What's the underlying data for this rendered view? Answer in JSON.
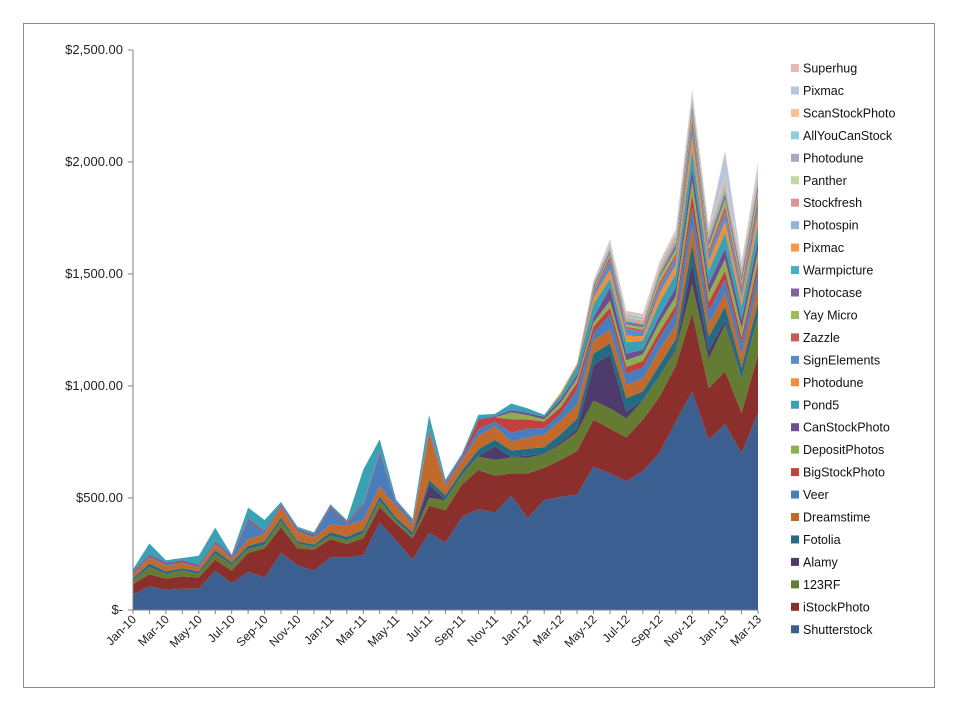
{
  "chart_data": {
    "type": "area",
    "stacked": true,
    "title": "",
    "xlabel": "",
    "ylabel": "",
    "ylim": [
      0,
      2500
    ],
    "yticks": [
      {
        "value": 0,
        "label": "$-"
      },
      {
        "value": 500,
        "label": "$500.00"
      },
      {
        "value": 1000,
        "label": "$1,000.00"
      },
      {
        "value": 1500,
        "label": "$1,500.00"
      },
      {
        "value": 2000,
        "label": "$2,000.00"
      },
      {
        "value": 2500,
        "label": "$2,500.00"
      }
    ],
    "grid": false,
    "legend_position": "right",
    "categories": [
      "Jan-10",
      "Feb-10",
      "Mar-10",
      "Apr-10",
      "May-10",
      "Jun-10",
      "Jul-10",
      "Aug-10",
      "Sep-10",
      "Oct-10",
      "Nov-10",
      "Dec-10",
      "Jan-11",
      "Feb-11",
      "Mar-11",
      "Apr-11",
      "May-11",
      "Jun-11",
      "Jul-11",
      "Aug-11",
      "Sep-11",
      "Oct-11",
      "Nov-11",
      "Dec-11",
      "Jan-12",
      "Feb-12",
      "Mar-12",
      "Apr-12",
      "May-12",
      "Jun-12",
      "Jul-12",
      "Aug-12",
      "Sep-12",
      "Oct-12",
      "Nov-12",
      "Dec-12",
      "Jan-13",
      "Feb-13",
      "Mar-13"
    ],
    "xtick_labels": [
      "Jan-10",
      "Mar-10",
      "May-10",
      "Jul-10",
      "Sep-10",
      "Nov-10",
      "Jan-11",
      "Mar-11",
      "May-11",
      "Jul-11",
      "Sep-11",
      "Nov-11",
      "Jan-12",
      "Mar-12",
      "May-12",
      "Jul-12",
      "Sep-12",
      "Nov-12",
      "Jan-13",
      "Mar-13"
    ],
    "series": [
      {
        "name": "Shutterstock",
        "color": "#3c5f91",
        "values": [
          70,
          105,
          90,
          95,
          95,
          175,
          120,
          170,
          145,
          255,
          200,
          175,
          235,
          235,
          245,
          390,
          310,
          225,
          345,
          300,
          415,
          450,
          435,
          510,
          410,
          490,
          505,
          515,
          640,
          610,
          575,
          620,
          700,
          840,
          975,
          760,
          830,
          700,
          880
        ]
      },
      {
        "name": "iStockPhoto",
        "color": "#8b2f2c",
        "values": [
          45,
          55,
          50,
          55,
          50,
          50,
          55,
          85,
          130,
          115,
          75,
          95,
          80,
          60,
          75,
          70,
          75,
          95,
          120,
          145,
          145,
          175,
          165,
          100,
          200,
          145,
          165,
          195,
          210,
          200,
          195,
          230,
          250,
          250,
          350,
          230,
          235,
          180,
          260
        ]
      },
      {
        "name": "123RF",
        "color": "#647c32",
        "values": [
          15,
          30,
          20,
          25,
          15,
          25,
          25,
          15,
          15,
          25,
          20,
          10,
          15,
          15,
          20,
          25,
          10,
          10,
          35,
          45,
          40,
          60,
          70,
          70,
          70,
          60,
          70,
          85,
          85,
          90,
          85,
          85,
          90,
          70,
          130,
          130,
          210,
          150,
          170
        ]
      },
      {
        "name": "Alamy",
        "color": "#4e3b6c",
        "values": [
          2,
          2,
          2,
          2,
          2,
          2,
          2,
          2,
          2,
          2,
          2,
          2,
          2,
          2,
          2,
          2,
          2,
          2,
          60,
          2,
          2,
          2,
          60,
          2,
          10,
          2,
          10,
          15,
          160,
          240,
          30,
          2,
          2,
          10,
          100,
          40,
          20,
          2,
          2
        ]
      },
      {
        "name": "Fotolia",
        "color": "#226b80",
        "values": [
          10,
          15,
          10,
          10,
          10,
          15,
          10,
          15,
          15,
          15,
          10,
          10,
          15,
          15,
          15,
          20,
          15,
          15,
          20,
          20,
          20,
          30,
          30,
          30,
          30,
          30,
          35,
          45,
          50,
          50,
          60,
          40,
          50,
          40,
          80,
          60,
          60,
          50,
          60
        ]
      },
      {
        "name": "Dreamstime",
        "color": "#c26a2b",
        "values": [
          15,
          25,
          25,
          20,
          15,
          25,
          15,
          30,
          30,
          45,
          40,
          30,
          35,
          50,
          45,
          45,
          50,
          30,
          210,
          40,
          45,
          60,
          60,
          40,
          50,
          55,
          60,
          60,
          60,
          60,
          60,
          55,
          70,
          60,
          80,
          55,
          60,
          55,
          80
        ]
      },
      {
        "name": "Veer",
        "color": "#4a7dbb",
        "values": [
          5,
          5,
          5,
          5,
          5,
          5,
          5,
          80,
          5,
          5,
          5,
          5,
          70,
          5,
          65,
          150,
          10,
          10,
          10,
          10,
          10,
          30,
          20,
          40,
          40,
          30,
          30,
          70,
          30,
          70,
          50,
          50,
          50,
          60,
          80,
          60,
          60,
          50,
          60
        ]
      },
      {
        "name": "BigStockPhoto",
        "color": "#c0413d",
        "values": [
          5,
          5,
          5,
          5,
          5,
          5,
          5,
          5,
          5,
          5,
          5,
          5,
          5,
          5,
          5,
          5,
          5,
          5,
          5,
          5,
          5,
          40,
          20,
          60,
          40,
          30,
          30,
          30,
          30,
          30,
          30,
          30,
          30,
          30,
          60,
          40,
          40,
          30,
          40
        ]
      },
      {
        "name": "DepositPhotos",
        "color": "#8caf50",
        "values": [
          0,
          0,
          0,
          0,
          0,
          0,
          0,
          0,
          0,
          0,
          0,
          0,
          0,
          0,
          0,
          0,
          0,
          0,
          0,
          0,
          0,
          0,
          0,
          30,
          20,
          10,
          20,
          20,
          20,
          30,
          30,
          30,
          40,
          40,
          60,
          40,
          50,
          40,
          50
        ]
      },
      {
        "name": "CanStockPhoto",
        "color": "#6e4d93",
        "values": [
          5,
          5,
          5,
          5,
          5,
          5,
          5,
          5,
          5,
          5,
          5,
          5,
          5,
          5,
          5,
          5,
          5,
          5,
          5,
          5,
          5,
          5,
          5,
          10,
          10,
          10,
          15,
          15,
          20,
          60,
          30,
          20,
          30,
          40,
          60,
          40,
          50,
          40,
          50
        ]
      },
      {
        "name": "Pond5",
        "color": "#3aa1b5",
        "values": [
          10,
          50,
          10,
          10,
          40,
          60,
          5,
          50,
          50,
          10,
          10,
          10,
          10,
          10,
          150,
          50,
          10,
          10,
          60,
          10,
          10,
          20,
          10,
          30,
          20,
          10,
          20,
          40,
          60,
          40,
          50,
          40,
          60,
          60,
          80,
          60,
          70,
          60,
          70
        ]
      },
      {
        "name": "Photodune",
        "color": "#f08f3a",
        "values": [
          0,
          0,
          0,
          0,
          0,
          0,
          0,
          0,
          0,
          0,
          0,
          0,
          0,
          0,
          0,
          0,
          0,
          0,
          0,
          0,
          0,
          0,
          0,
          0,
          0,
          0,
          10,
          10,
          30,
          40,
          30,
          20,
          40,
          40,
          60,
          40,
          50,
          40,
          50
        ]
      },
      {
        "name": "SignElements",
        "color": "#5a8bcb",
        "values": [
          0,
          0,
          0,
          0,
          0,
          0,
          0,
          0,
          0,
          0,
          0,
          0,
          0,
          0,
          0,
          0,
          0,
          0,
          0,
          0,
          0,
          0,
          0,
          0,
          0,
          0,
          0,
          0,
          20,
          40,
          30,
          20,
          30,
          30,
          50,
          30,
          40,
          30,
          40
        ]
      },
      {
        "name": "Zazzle",
        "color": "#c85a57",
        "values": [
          0,
          0,
          0,
          0,
          0,
          0,
          0,
          0,
          0,
          0,
          0,
          0,
          0,
          0,
          0,
          0,
          0,
          0,
          0,
          0,
          0,
          0,
          0,
          0,
          0,
          0,
          0,
          0,
          10,
          20,
          10,
          10,
          20,
          20,
          30,
          20,
          30,
          20,
          30
        ]
      },
      {
        "name": "Yay Micro",
        "color": "#9bbb59",
        "values": [
          0,
          0,
          0,
          0,
          0,
          0,
          0,
          0,
          0,
          0,
          0,
          0,
          0,
          0,
          0,
          0,
          0,
          0,
          0,
          0,
          0,
          0,
          0,
          0,
          0,
          0,
          0,
          0,
          10,
          10,
          10,
          10,
          20,
          20,
          30,
          20,
          30,
          20,
          30
        ]
      },
      {
        "name": "Photocase",
        "color": "#8064a2",
        "values": [
          0,
          0,
          0,
          0,
          0,
          0,
          0,
          0,
          0,
          0,
          0,
          0,
          0,
          0,
          0,
          0,
          0,
          0,
          0,
          0,
          0,
          0,
          0,
          0,
          0,
          0,
          0,
          0,
          10,
          10,
          10,
          10,
          10,
          20,
          20,
          20,
          20,
          20,
          20
        ]
      },
      {
        "name": "Warmpicture",
        "color": "#4bacc6",
        "values": [
          0,
          0,
          0,
          0,
          0,
          0,
          0,
          0,
          0,
          0,
          0,
          0,
          0,
          0,
          0,
          0,
          0,
          0,
          0,
          0,
          0,
          0,
          0,
          0,
          0,
          0,
          0,
          0,
          5,
          10,
          5,
          5,
          10,
          10,
          15,
          10,
          15,
          10,
          15
        ]
      },
      {
        "name": "Pixmac",
        "color": "#f79646",
        "values": [
          0,
          0,
          0,
          0,
          0,
          0,
          0,
          0,
          0,
          0,
          0,
          0,
          0,
          0,
          0,
          0,
          0,
          0,
          0,
          0,
          0,
          0,
          0,
          0,
          0,
          0,
          0,
          0,
          5,
          5,
          5,
          5,
          10,
          10,
          10,
          10,
          10,
          10,
          10
        ]
      },
      {
        "name": "Photospin",
        "color": "#95b3d7",
        "values": [
          0,
          0,
          0,
          0,
          0,
          0,
          0,
          0,
          0,
          0,
          0,
          0,
          0,
          0,
          0,
          0,
          0,
          0,
          0,
          0,
          0,
          0,
          0,
          0,
          0,
          0,
          0,
          0,
          5,
          5,
          5,
          5,
          5,
          10,
          10,
          10,
          10,
          10,
          10
        ]
      },
      {
        "name": "Stockfresh",
        "color": "#d99694",
        "values": [
          0,
          0,
          0,
          0,
          0,
          0,
          0,
          0,
          0,
          0,
          0,
          0,
          0,
          0,
          0,
          0,
          0,
          0,
          0,
          0,
          0,
          0,
          0,
          0,
          0,
          0,
          0,
          0,
          5,
          5,
          5,
          5,
          5,
          10,
          10,
          10,
          10,
          10,
          10
        ]
      },
      {
        "name": "Panther",
        "color": "#c3d69b",
        "values": [
          0,
          0,
          0,
          0,
          0,
          0,
          0,
          0,
          0,
          0,
          0,
          0,
          0,
          0,
          0,
          0,
          0,
          0,
          0,
          0,
          0,
          0,
          0,
          0,
          0,
          0,
          0,
          0,
          5,
          5,
          5,
          5,
          5,
          5,
          10,
          5,
          10,
          5,
          10
        ]
      },
      {
        "name": "Photodune",
        "color": "#b2a2c7",
        "values": [
          0,
          0,
          0,
          0,
          0,
          0,
          0,
          0,
          0,
          0,
          0,
          0,
          0,
          0,
          0,
          0,
          0,
          0,
          0,
          0,
          0,
          0,
          0,
          0,
          0,
          0,
          0,
          0,
          0,
          5,
          5,
          5,
          5,
          5,
          5,
          5,
          10,
          5,
          10
        ]
      },
      {
        "name": "AllYouCanStock",
        "color": "#92cddc",
        "values": [
          0,
          0,
          0,
          0,
          0,
          0,
          0,
          0,
          0,
          0,
          0,
          0,
          0,
          0,
          0,
          0,
          0,
          0,
          0,
          0,
          0,
          0,
          0,
          0,
          0,
          0,
          0,
          0,
          0,
          5,
          5,
          5,
          5,
          5,
          5,
          5,
          10,
          5,
          10
        ]
      },
      {
        "name": "ScanStockPhoto",
        "color": "#fac08f",
        "values": [
          0,
          0,
          0,
          0,
          0,
          0,
          0,
          0,
          0,
          0,
          0,
          0,
          0,
          0,
          0,
          0,
          0,
          0,
          0,
          0,
          0,
          0,
          0,
          0,
          0,
          0,
          0,
          0,
          0,
          5,
          5,
          5,
          5,
          5,
          5,
          5,
          10,
          5,
          10
        ]
      },
      {
        "name": "Pixmac",
        "color": "#b7c4dd",
        "values": [
          0,
          0,
          0,
          0,
          0,
          0,
          0,
          0,
          0,
          0,
          0,
          0,
          0,
          0,
          0,
          0,
          0,
          0,
          0,
          0,
          0,
          0,
          0,
          0,
          0,
          0,
          0,
          0,
          0,
          5,
          5,
          5,
          5,
          5,
          5,
          5,
          100,
          5,
          10
        ]
      },
      {
        "name": "Superhug",
        "color": "#e6b9b8",
        "values": [
          0,
          0,
          0,
          0,
          0,
          0,
          0,
          0,
          0,
          0,
          0,
          0,
          0,
          0,
          0,
          0,
          0,
          0,
          0,
          0,
          0,
          0,
          0,
          0,
          0,
          0,
          0,
          0,
          0,
          5,
          5,
          5,
          5,
          5,
          5,
          5,
          10,
          5,
          10
        ]
      }
    ]
  }
}
